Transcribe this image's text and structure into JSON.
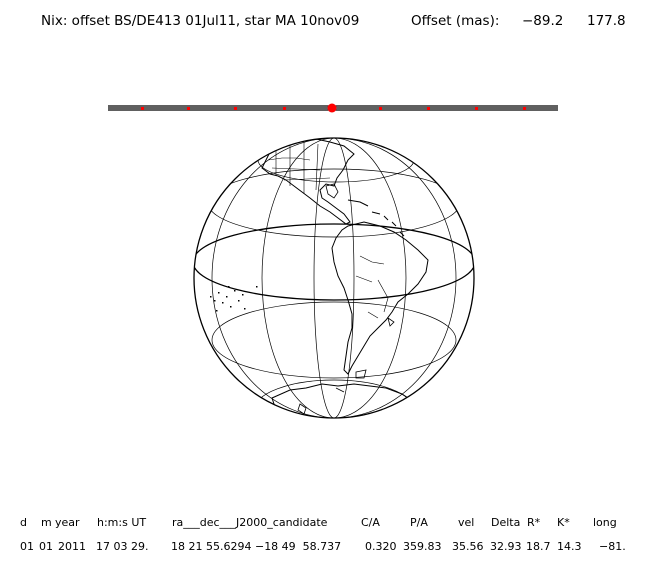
{
  "title": {
    "label": "Nix: offset BS/DE413 01Jul11, star MA 10nov09",
    "offset_label": "Offset (mas):",
    "offset_x": "−89.2",
    "offset_y": "177.8"
  },
  "table": {
    "headers": [
      "d",
      "m",
      "year",
      "h:m:s UT",
      "ra___dec___J2000_candidate",
      "C/A",
      "P/A",
      "vel",
      "Delta",
      "R*",
      "K*",
      "long"
    ],
    "values": [
      "01",
      "01",
      "2011",
      "17 03 29.",
      "18 21 55.6294 −18 49  58.737",
      "0.320",
      "359.83",
      "35.56",
      "32.93",
      "18.7",
      "14.3",
      "−81."
    ]
  },
  "colors": {
    "line": "#000000",
    "marker": "#ff0000",
    "background": "#ffffff"
  }
}
